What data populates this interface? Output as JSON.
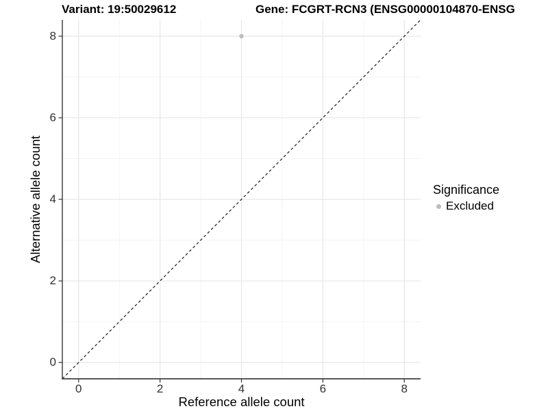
{
  "chart_data": {
    "type": "scatter",
    "title_left": "Variant: 19:50029612",
    "title_right": "Gene: FCGRT-RCN3 (ENSG00000104870-ENSG",
    "xlabel": "Reference allele count",
    "ylabel": "Alternative allele count",
    "xlim": [
      -0.4,
      8.4
    ],
    "ylim": [
      -0.4,
      8.4
    ],
    "x_ticks": [
      0,
      2,
      4,
      6,
      8
    ],
    "y_ticks": [
      0,
      2,
      4,
      6,
      8
    ],
    "x_minor_ticks": [
      1,
      3,
      5,
      7
    ],
    "y_minor_ticks": [
      1,
      3,
      5,
      7
    ],
    "grid": true,
    "reference_line": {
      "kind": "identity",
      "style": "dashed",
      "color": "#1a1a1a"
    },
    "series": [
      {
        "name": "Excluded",
        "color": "#bdbdbd",
        "points": [
          {
            "x": 4,
            "y": 8
          }
        ]
      }
    ],
    "legend": {
      "title": "Significance",
      "position": "right",
      "entries": [
        {
          "label": "Excluded",
          "color": "#bdbdbd"
        }
      ]
    }
  },
  "colors": {
    "major_grid": "#e8e8e8",
    "minor_grid": "#f3f3f3",
    "axis_line": "#404040",
    "tick_mark": "#333333",
    "point": "#bdbdbd"
  }
}
